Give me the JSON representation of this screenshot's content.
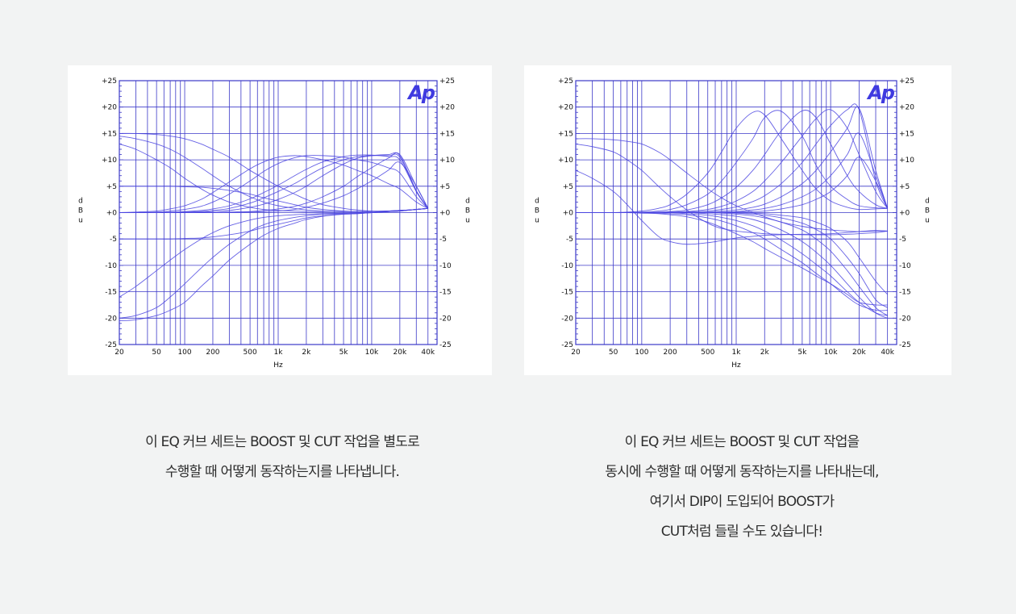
{
  "colors": {
    "page_bg": "#f2f3f3",
    "grid": "#3b38c8",
    "curve": "#4a44e0",
    "text": "#2c2c2c",
    "logo": "#3f3ae0"
  },
  "charts": [
    {
      "id": "left",
      "logo": "Ap",
      "chart_data": {
        "type": "line",
        "xlabel": "Hz",
        "ylabel": "dBu",
        "xscale": "log",
        "xlim": [
          20,
          50000
        ],
        "ylim": [
          -25,
          25
        ],
        "x_ticks": [
          "20",
          "50",
          "100",
          "200",
          "500",
          "1k",
          "2k",
          "5k",
          "10k",
          "20k",
          "40k"
        ],
        "y_ticks": [
          "+25",
          "+20",
          "+15",
          "+10",
          "+5",
          "+0",
          "-5",
          "-10",
          "-15",
          "-20",
          "-25"
        ],
        "x": [
          20,
          30,
          50,
          70,
          100,
          150,
          200,
          300,
          500,
          700,
          1000,
          1500,
          2000,
          3000,
          5000,
          7000,
          10000,
          15000,
          20000,
          30000,
          40000
        ],
        "series": [
          {
            "values": [
              15,
              15,
              14.8,
              14.5,
              14,
              13,
              12,
              10.5,
              8,
              6.5,
              5,
              3.5,
              2.5,
              1.5,
              0.8,
              0.5,
              0.3,
              0.3,
              0.4,
              0.6,
              0.8
            ]
          },
          {
            "values": [
              14.5,
              14,
              13,
              12,
              10.5,
              8.5,
              7,
              5,
              3,
              2,
              1.3,
              0.8,
              0.5,
              0.3,
              0.2,
              0.2,
              0.2,
              0.3,
              0.4,
              0.6,
              0.8
            ]
          },
          {
            "values": [
              13,
              12,
              10,
              8.5,
              6.5,
              4.5,
              3.3,
              2,
              1,
              0.6,
              0.4,
              0.3,
              0.2,
              0.2,
              0.2,
              0.2,
              0.2,
              0.3,
              0.4,
              0.6,
              0.8
            ]
          },
          {
            "values": [
              5,
              5,
              5,
              5,
              4.9,
              4.8,
              4.6,
              4.2,
              3.5,
              2.8,
              2.2,
              1.5,
              1,
              0.6,
              0.3,
              0.2,
              0.2,
              0.3,
              0.4,
              0.6,
              0.8
            ]
          },
          {
            "values": [
              -5,
              -5,
              -5,
              -5,
              -4.9,
              -4.8,
              -4.6,
              -4.2,
              -3.5,
              -2.8,
              -2.2,
              -1.5,
              -1,
              -0.6,
              -0.3,
              -0.2,
              0,
              0.2,
              0.3,
              0.6,
              0.8
            ]
          },
          {
            "values": [
              -20.5,
              -20.3,
              -19.5,
              -18.5,
              -17,
              -14,
              -12,
              -9,
              -6,
              -4.3,
              -3,
              -2,
              -1.3,
              -0.7,
              -0.3,
              -0.2,
              0,
              0.2,
              0.3,
              0.6,
              0.8
            ]
          },
          {
            "values": [
              -20,
              -19.5,
              -18,
              -16,
              -13.5,
              -10.5,
              -8.5,
              -6,
              -3.5,
              -2.3,
              -1.5,
              -0.9,
              -0.6,
              -0.3,
              -0.2,
              -0.1,
              0,
              0.2,
              0.3,
              0.6,
              0.8
            ]
          },
          {
            "values": [
              -16,
              -14,
              -11,
              -9,
              -7,
              -5,
              -3.8,
              -2.5,
              -1.4,
              -0.9,
              -0.6,
              -0.4,
              -0.3,
              -0.2,
              -0.1,
              0,
              0,
              0.2,
              0.3,
              0.6,
              0.8
            ]
          },
          {
            "values": [
              0,
              0,
              0,
              0,
              0.1,
              0.2,
              0.4,
              0.8,
              1.8,
              2.8,
              4,
              5.5,
              6.8,
              8.5,
              10,
              10.6,
              10.8,
              10.8,
              10.5,
              4,
              0.8
            ]
          },
          {
            "values": [
              0,
              0,
              0,
              0,
              0,
              0.1,
              0.2,
              0.4,
              1,
              1.6,
              2.5,
              3.8,
              5,
              7,
              9.2,
              10.3,
              10.8,
              11,
              10.8,
              4.2,
              0.8
            ]
          },
          {
            "values": [
              0,
              0,
              0.1,
              0.3,
              0.6,
              1.2,
              2,
              3.5,
              6,
              7.8,
              9.3,
              10.4,
              10.8,
              10.8,
              10.5,
              10,
              9.5,
              8.5,
              7.5,
              3,
              0.8
            ]
          },
          {
            "values": [
              0,
              0.1,
              0.3,
              0.7,
              1.3,
              2.5,
              3.8,
              5.8,
              8.3,
              9.6,
              10.5,
              10.8,
              10.6,
              10,
              9,
              8,
              7,
              5.5,
              4.5,
              2,
              0.8
            ]
          },
          {
            "values": [
              0,
              0,
              0,
              0.1,
              0.2,
              0.4,
              0.7,
              1.3,
              2.6,
              3.8,
              5.2,
              7,
              8.2,
              9.6,
              10.6,
              10.9,
              10.9,
              10.6,
              10,
              4,
              0.8
            ]
          },
          {
            "values": [
              0,
              0,
              0,
              0,
              0,
              0,
              0,
              0.1,
              0.2,
              0.4,
              0.7,
              1.2,
              1.8,
              3,
              5,
              6.8,
              8.5,
              10.3,
              11,
              5,
              0.8
            ]
          },
          {
            "values": [
              0,
              0,
              0,
              0,
              0,
              0,
              0,
              0,
              0.1,
              0.2,
              0.3,
              0.6,
              1,
              1.8,
              3.2,
              4.5,
              6,
              8,
              9.5,
              5,
              0.8
            ]
          }
        ]
      },
      "caption": [
        "이 EQ 커브 세트는 BOOST 및 CUT 작업을 별도로",
        "수행할 때 어떻게 동작하는지를 나타냅니다."
      ]
    },
    {
      "id": "right",
      "logo": "Ap",
      "chart_data": {
        "type": "line",
        "xlabel": "Hz",
        "ylabel": "dBu",
        "xscale": "log",
        "xlim": [
          20,
          50000
        ],
        "ylim": [
          -25,
          25
        ],
        "x_ticks": [
          "20",
          "50",
          "100",
          "200",
          "500",
          "1k",
          "2k",
          "5k",
          "10k",
          "20k",
          "40k"
        ],
        "y_ticks": [
          "+25",
          "+20",
          "+15",
          "+10",
          "+5",
          "+0",
          "-5",
          "-10",
          "-15",
          "-20",
          "-25"
        ],
        "x": [
          20,
          30,
          50,
          70,
          100,
          150,
          200,
          300,
          500,
          700,
          1000,
          1500,
          2000,
          3000,
          5000,
          7000,
          10000,
          15000,
          20000,
          30000,
          40000
        ],
        "series": [
          {
            "values": [
              14,
              14,
              13.8,
              13.5,
              13,
              11.5,
              10,
              7.5,
              4.5,
              2.8,
              1.3,
              0,
              -0.8,
              -1.8,
              -2.6,
              -3,
              -3.3,
              -3.5,
              -3.6,
              -3.5,
              -3.5
            ]
          },
          {
            "values": [
              13,
              12.5,
              11.5,
              10,
              8,
              5,
              3,
              0.5,
              -2,
              -3,
              -3.5,
              -3.8,
              -4,
              -4.1,
              -4.2,
              -4.2,
              -4.2,
              -4.1,
              -4,
              -3.8,
              -3.5
            ]
          },
          {
            "values": [
              8,
              6.5,
              4,
              1.5,
              -1.5,
              -4.5,
              -5.5,
              -6,
              -5.7,
              -5.3,
              -4.8,
              -4.5,
              -4.3,
              -4.2,
              -4.1,
              -4.1,
              -4,
              -3.8,
              -3.6,
              -3.4,
              -3.5
            ]
          },
          {
            "values": [
              0,
              0,
              0,
              0,
              -0.1,
              -0.2,
              -0.4,
              -0.8,
              -1.8,
              -2.8,
              -4,
              -5.5,
              -6.8,
              -8.5,
              -10.5,
              -12,
              -13.5,
              -15.5,
              -17,
              -17.5,
              -17.5
            ]
          },
          {
            "values": [
              0,
              0,
              0,
              0,
              0,
              -0.1,
              -0.2,
              -0.4,
              -1,
              -1.6,
              -2.5,
              -3.8,
              -5,
              -7,
              -9.5,
              -11.5,
              -13.5,
              -16,
              -17.5,
              -18.5,
              -18.5
            ]
          },
          {
            "values": [
              0,
              0,
              0,
              0,
              0,
              0,
              0,
              -0.2,
              -0.5,
              -0.9,
              -1.5,
              -2.5,
              -3.5,
              -5.2,
              -7.8,
              -9.8,
              -12,
              -15,
              -17,
              -19,
              -19.5
            ]
          },
          {
            "values": [
              0,
              0,
              0,
              0,
              0,
              0,
              0,
              0,
              -0.2,
              -0.4,
              -0.7,
              -1.3,
              -2,
              -3.3,
              -5.5,
              -7.5,
              -10,
              -13.5,
              -16,
              -19,
              -20
            ]
          },
          {
            "values": [
              0,
              0,
              0,
              0,
              0,
              0,
              0,
              0,
              0,
              -0.1,
              -0.3,
              -0.6,
              -1,
              -1.8,
              -3.3,
              -5,
              -7.3,
              -11,
              -14,
              -18,
              -19.5
            ]
          },
          {
            "values": [
              0,
              0,
              0,
              0,
              0,
              0,
              0,
              0,
              0,
              0,
              -0.1,
              -0.3,
              -0.5,
              -1,
              -2,
              -3.2,
              -5,
              -8.5,
              -11.5,
              -16.5,
              -18
            ]
          },
          {
            "values": [
              0,
              0,
              0,
              0,
              0,
              0,
              0,
              0,
              0,
              0,
              0,
              -0.1,
              -0.2,
              -0.5,
              -1,
              -1.8,
              -3,
              -5.5,
              -8.5,
              -13,
              -15.5
            ]
          },
          {
            "values": [
              0,
              0,
              0,
              0.1,
              0.3,
              0.8,
              1.5,
              3.5,
              7.5,
              11.5,
              16,
              19,
              18.5,
              14,
              8,
              4.5,
              2.2,
              1,
              0.6,
              0.7,
              0.8
            ]
          },
          {
            "values": [
              0,
              0,
              0,
              0,
              0.1,
              0.3,
              0.6,
              1.5,
              3.5,
              6,
              9.5,
              14,
              18,
              19.2,
              14.5,
              9,
              5,
              2.5,
              1.3,
              0.9,
              0.8
            ]
          },
          {
            "values": [
              0,
              0,
              0,
              0,
              0,
              0.1,
              0.2,
              0.5,
              1.5,
              2.8,
              4.8,
              8,
              11,
              15.5,
              19.3,
              18,
              13,
              7,
              4,
              1.5,
              0.8
            ]
          },
          {
            "values": [
              0,
              0,
              0,
              0,
              0,
              0,
              0.1,
              0.2,
              0.6,
              1.2,
              2.2,
              4,
              6,
              9.5,
              14.5,
              17.8,
              19.5,
              16,
              11,
              4,
              0.8
            ]
          },
          {
            "values": [
              0,
              0,
              0,
              0,
              0,
              0,
              0,
              0.1,
              0.3,
              0.6,
              1.1,
              2.1,
              3.2,
              5.5,
              9.5,
              13,
              16.5,
              19.5,
              19.5,
              6,
              0.8
            ]
          },
          {
            "values": [
              0,
              0,
              0,
              0,
              0,
              0,
              0,
              0,
              0.1,
              0.3,
              0.5,
              1,
              1.6,
              3,
              5.5,
              8,
              11.5,
              16,
              19.8,
              8,
              0.8
            ]
          },
          {
            "values": [
              0,
              0,
              0,
              0,
              0,
              0,
              0,
              0,
              0,
              0.1,
              0.2,
              0.5,
              0.8,
              1.5,
              3,
              4.5,
              7,
              11,
              15,
              7,
              0.8
            ]
          },
          {
            "values": [
              0,
              0,
              0,
              0,
              0,
              0,
              0,
              0,
              0,
              0,
              0.1,
              0.2,
              0.3,
              0.7,
              1.5,
              2.5,
              4,
              7,
              10.5,
              6,
              0.8
            ]
          }
        ]
      },
      "caption": [
        "이 EQ 커브 세트는 BOOST 및 CUT 작업을",
        "동시에 수행할 때 어떻게 동작하는지를 나타내는데,",
        "여기서 DIP이 도입되어 BOOST가",
        "CUT처럼 들릴 수도 있습니다!"
      ]
    }
  ]
}
